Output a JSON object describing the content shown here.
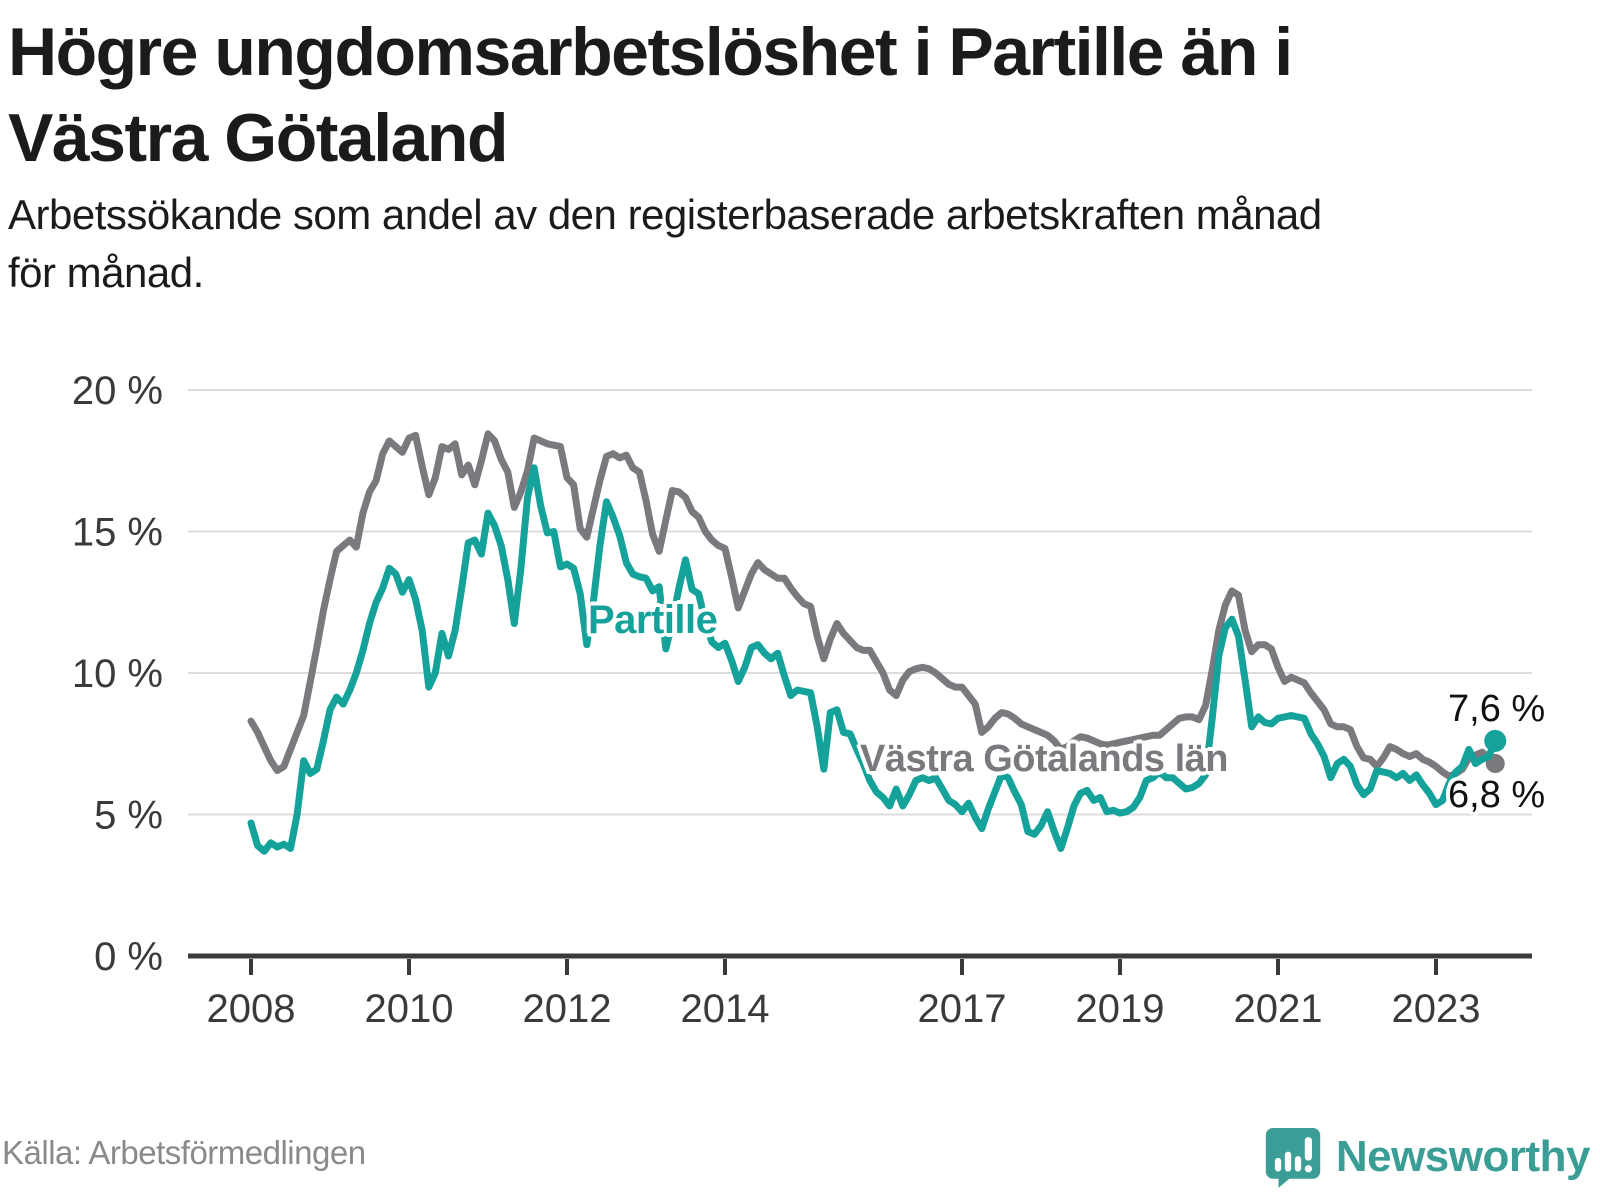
{
  "header": {
    "title_lines": [
      "Högre ungdomsarbetslöshet i Partille än i",
      "Västra Götaland"
    ],
    "subtitle_lines": [
      "Arbetssökande som andel av den registerbaserade arbetskraften månad",
      "för månad."
    ]
  },
  "chart_data": {
    "type": "line",
    "title": "Högre ungdomsarbetslöshet i Partille än i Västra Götaland",
    "subtitle": "Arbetssökande som andel av den registerbaserade arbetskraften månad för månad.",
    "unit": "%",
    "frequency": "monthly",
    "x_start": "2008-01",
    "x_end": "2023-10",
    "ylim": [
      0,
      20
    ],
    "yticks": [
      0,
      5,
      10,
      15,
      20
    ],
    "ytick_labels": [
      "0 %",
      "5 %",
      "10 %",
      "15 %",
      "20 %"
    ],
    "xtick_years": [
      2008,
      2010,
      2012,
      2014,
      2017,
      2019,
      2021,
      2023
    ],
    "grid": true,
    "grid_color": "#dcdcdc",
    "axis_color": "#3a3a3a",
    "series": [
      {
        "name": "Partille",
        "label": "Partille",
        "color": "#15a29a",
        "end_label": "7,6 %",
        "end_value": 7.6,
        "values": [
          4.7,
          3.9,
          3.7,
          4.0,
          3.85,
          3.95,
          3.8,
          5.0,
          6.9,
          6.45,
          6.6,
          7.6,
          8.7,
          9.15,
          8.9,
          9.4,
          10.0,
          10.8,
          11.75,
          12.5,
          13.0,
          13.7,
          13.5,
          12.85,
          13.3,
          12.6,
          11.5,
          9.5,
          10.0,
          11.4,
          10.6,
          11.5,
          13.0,
          14.6,
          14.7,
          14.2,
          15.65,
          15.2,
          14.5,
          13.3,
          11.75,
          13.7,
          16.2,
          17.25,
          15.9,
          14.95,
          15.0,
          13.75,
          13.85,
          13.7,
          12.8,
          11.0,
          12.5,
          14.5,
          16.05,
          15.5,
          14.85,
          13.9,
          13.5,
          13.4,
          13.35,
          12.9,
          13.05,
          10.85,
          11.8,
          13.0,
          14.0,
          12.95,
          12.8,
          11.8,
          11.1,
          10.9,
          11.05,
          10.45,
          9.7,
          10.2,
          10.9,
          11.0,
          10.7,
          10.5,
          10.7,
          9.9,
          9.2,
          9.4,
          9.35,
          9.3,
          8.1,
          6.6,
          8.6,
          8.7,
          7.9,
          7.85,
          7.3,
          6.8,
          6.2,
          5.8,
          5.6,
          5.3,
          5.9,
          5.3,
          5.7,
          6.2,
          6.3,
          6.2,
          6.3,
          5.9,
          5.5,
          5.35,
          5.1,
          5.4,
          4.9,
          4.5,
          5.2,
          5.8,
          6.4,
          6.3,
          5.8,
          5.35,
          4.4,
          4.3,
          4.6,
          5.1,
          4.4,
          3.8,
          4.5,
          5.3,
          5.75,
          5.85,
          5.5,
          5.6,
          5.1,
          5.15,
          5.05,
          5.1,
          5.25,
          5.6,
          6.2,
          6.3,
          6.5,
          6.3,
          6.3,
          6.1,
          5.9,
          5.95,
          6.1,
          6.4,
          8.4,
          10.6,
          11.6,
          11.9,
          11.3,
          9.75,
          8.1,
          8.45,
          8.25,
          8.2,
          8.4,
          8.45,
          8.5,
          8.45,
          8.4,
          7.85,
          7.5,
          7.05,
          6.3,
          6.8,
          6.95,
          6.7,
          6.05,
          5.7,
          5.9,
          6.55,
          6.5,
          6.45,
          6.3,
          6.45,
          6.2,
          6.4,
          6.05,
          5.75,
          5.35,
          5.5,
          6.1,
          6.5,
          6.7,
          7.3,
          6.8,
          6.95,
          7.05,
          7.6
        ]
      },
      {
        "name": "Västra Götalands län",
        "label": "Västra Götalands län",
        "color": "#7b797e",
        "end_label": "6,8 %",
        "end_value": 6.8,
        "values": [
          8.3,
          7.9,
          7.4,
          6.9,
          6.55,
          6.7,
          7.3,
          7.9,
          8.5,
          9.7,
          10.9,
          12.2,
          13.3,
          14.3,
          14.5,
          14.7,
          14.45,
          15.65,
          16.4,
          16.8,
          17.75,
          18.2,
          18.0,
          17.8,
          18.3,
          18.4,
          17.3,
          16.3,
          16.9,
          18.0,
          17.9,
          18.1,
          17.0,
          17.35,
          16.65,
          17.5,
          18.45,
          18.2,
          17.55,
          17.1,
          15.85,
          16.4,
          17.15,
          18.3,
          18.2,
          18.1,
          18.05,
          18.0,
          16.9,
          16.65,
          15.1,
          14.8,
          15.8,
          16.8,
          17.65,
          17.75,
          17.6,
          17.7,
          17.25,
          17.1,
          16.1,
          14.9,
          14.3,
          15.4,
          16.45,
          16.4,
          16.2,
          15.7,
          15.5,
          15.0,
          14.7,
          14.5,
          14.4,
          13.4,
          12.3,
          12.9,
          13.5,
          13.9,
          13.65,
          13.5,
          13.35,
          13.35,
          13.0,
          12.7,
          12.45,
          12.35,
          11.3,
          10.5,
          11.2,
          11.75,
          11.4,
          11.15,
          10.9,
          10.8,
          10.8,
          10.4,
          10.0,
          9.4,
          9.2,
          9.75,
          10.05,
          10.15,
          10.2,
          10.15,
          10.0,
          9.8,
          9.6,
          9.5,
          9.5,
          9.2,
          8.9,
          7.9,
          8.1,
          8.4,
          8.6,
          8.55,
          8.4,
          8.2,
          8.1,
          8.0,
          7.9,
          7.8,
          7.6,
          7.3,
          7.4,
          7.6,
          7.75,
          7.7,
          7.6,
          7.5,
          7.45,
          7.5,
          7.55,
          7.6,
          7.65,
          7.7,
          7.75,
          7.8,
          7.8,
          8.0,
          8.2,
          8.4,
          8.45,
          8.45,
          8.35,
          8.85,
          10.1,
          11.5,
          12.4,
          12.9,
          12.75,
          11.5,
          10.75,
          11.0,
          11.0,
          10.85,
          10.2,
          9.7,
          9.85,
          9.75,
          9.65,
          9.3,
          9.0,
          8.7,
          8.2,
          8.1,
          8.1,
          8.0,
          7.4,
          7.0,
          6.95,
          6.7,
          7.0,
          7.4,
          7.3,
          7.15,
          7.05,
          7.15,
          6.95,
          6.85,
          6.7,
          6.5,
          6.35,
          6.45,
          6.6,
          7.0,
          7.1,
          7.2,
          7.0,
          6.8
        ]
      }
    ]
  },
  "footer": {
    "source": "Källa: Arbetsförmedlingen",
    "brand": "Newsworthy"
  }
}
